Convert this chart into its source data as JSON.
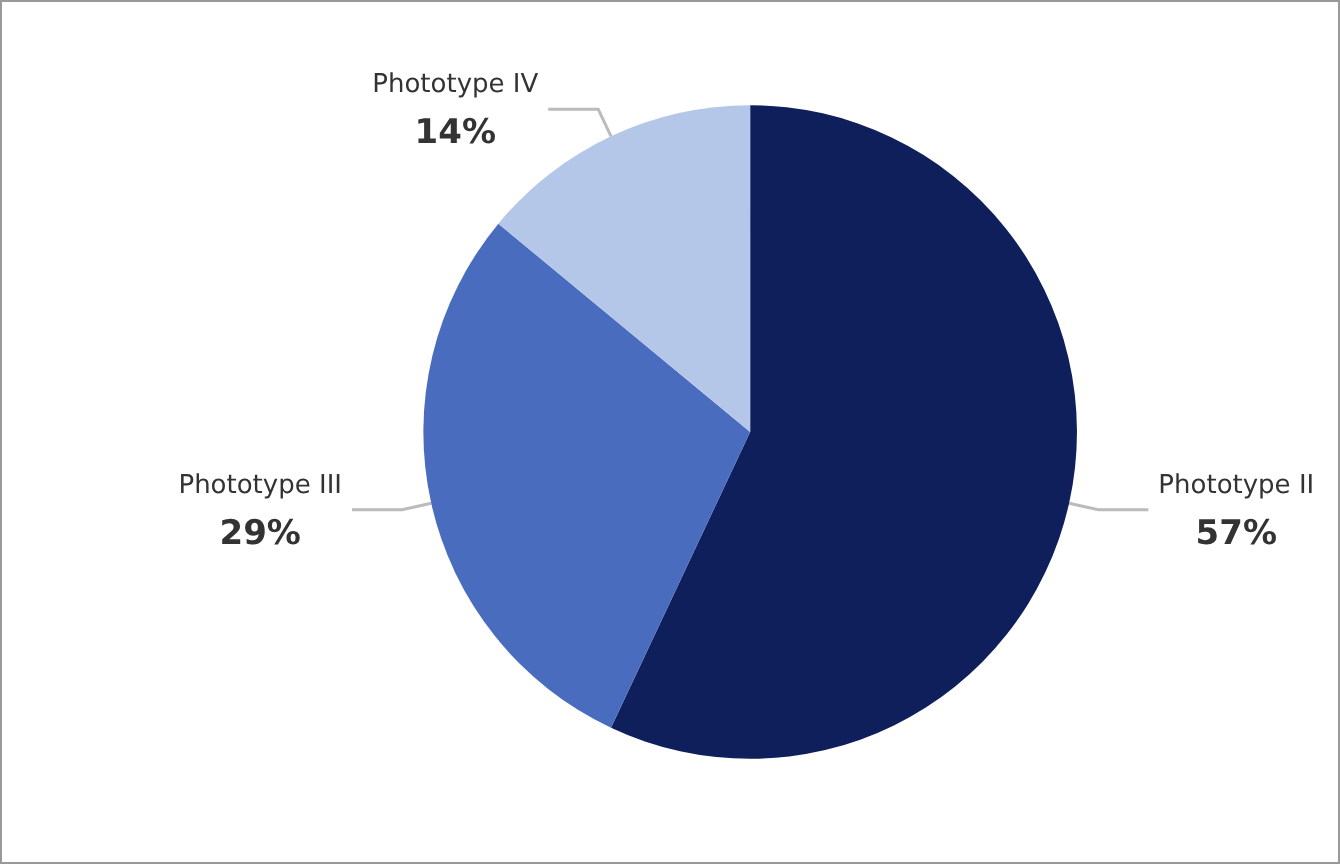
{
  "chart_data": {
    "type": "pie",
    "categories": [
      "Phototype II",
      "Phototype III",
      "Phototype IV"
    ],
    "values": [
      57,
      29,
      14
    ],
    "colors": [
      "#0e1f5b",
      "#4a6cbf",
      "#b5c7e8"
    ],
    "value_labels": [
      "57%",
      "29%",
      "14%"
    ]
  }
}
